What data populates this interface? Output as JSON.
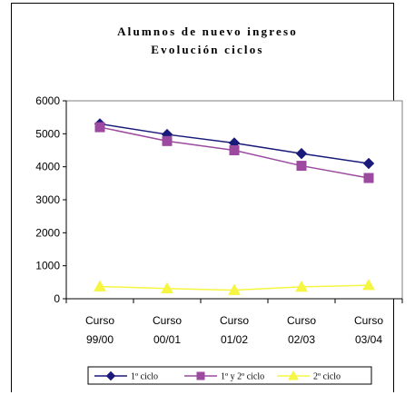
{
  "chart_data": {
    "type": "line",
    "title": [
      "Alumnos de nuevo ingreso",
      "Evolución ciclos"
    ],
    "xlabel": "",
    "ylabel": "",
    "categories": [
      [
        "Curso",
        "99/00"
      ],
      [
        "Curso",
        "00/01"
      ],
      [
        "Curso",
        "01/02"
      ],
      [
        "Curso",
        "02/03"
      ],
      [
        "Curso",
        "03/04"
      ]
    ],
    "ylim": [
      0,
      6000
    ],
    "yticks": [
      0,
      1000,
      2000,
      3000,
      4000,
      5000,
      6000
    ],
    "grid": false,
    "legend": "bottom",
    "series": [
      {
        "name": "1º ciclo",
        "values": [
          5300,
          4980,
          4720,
          4400,
          4100
        ],
        "color": "#1a1a7a",
        "marker": "diamond"
      },
      {
        "name": "1º y 2º ciclo",
        "values": [
          5200,
          4780,
          4500,
          4030,
          3660
        ],
        "color": "#9b4aa0",
        "marker": "square"
      },
      {
        "name": "2º ciclo",
        "values": [
          370,
          310,
          260,
          360,
          410
        ],
        "color": "#f5f542",
        "marker": "triangle"
      }
    ]
  }
}
